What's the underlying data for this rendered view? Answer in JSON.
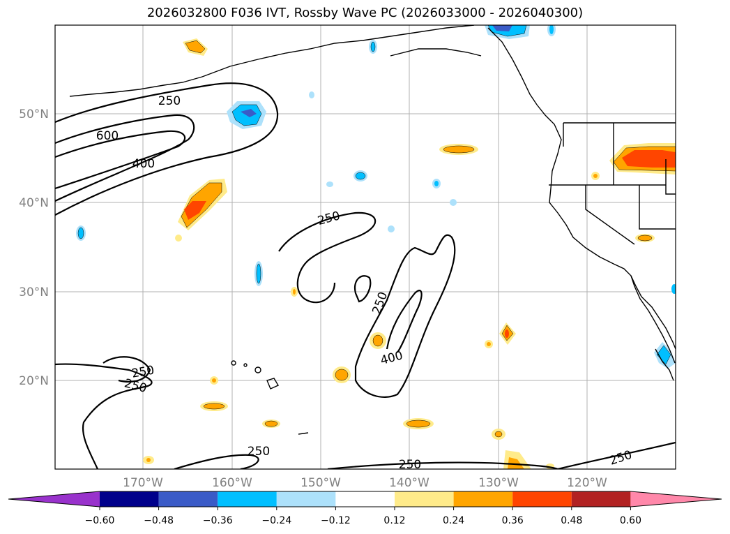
{
  "title": "2026032800 F036 IVT, Rossby Wave PC (2026033000 - 2026040300)",
  "latitude_labels": [
    "50°N",
    "40°N",
    "30°N",
    "20°N"
  ],
  "longitude_labels": [
    "170°W",
    "160°W",
    "150°W",
    "140°W",
    "130°W",
    "120°W"
  ],
  "contour_labels": [
    "250",
    "600",
    "400",
    "250",
    "250",
    "400",
    "250",
    "250",
    "250",
    "250",
    "250"
  ],
  "colorbar": {
    "tick_labels": [
      "−0.60",
      "−0.48",
      "−0.36",
      "−0.24",
      "−0.12",
      "0.12",
      "0.24",
      "0.36",
      "0.48",
      "0.60"
    ],
    "colors": [
      "#9932CC",
      "#00008B",
      "#3A5BC7",
      "#00BFFF",
      "#ADE1FB",
      "#FFFFFF",
      "#FFEB8A",
      "#FFA500",
      "#FF4500",
      "#B22222",
      "#FF88AA"
    ]
  }
}
